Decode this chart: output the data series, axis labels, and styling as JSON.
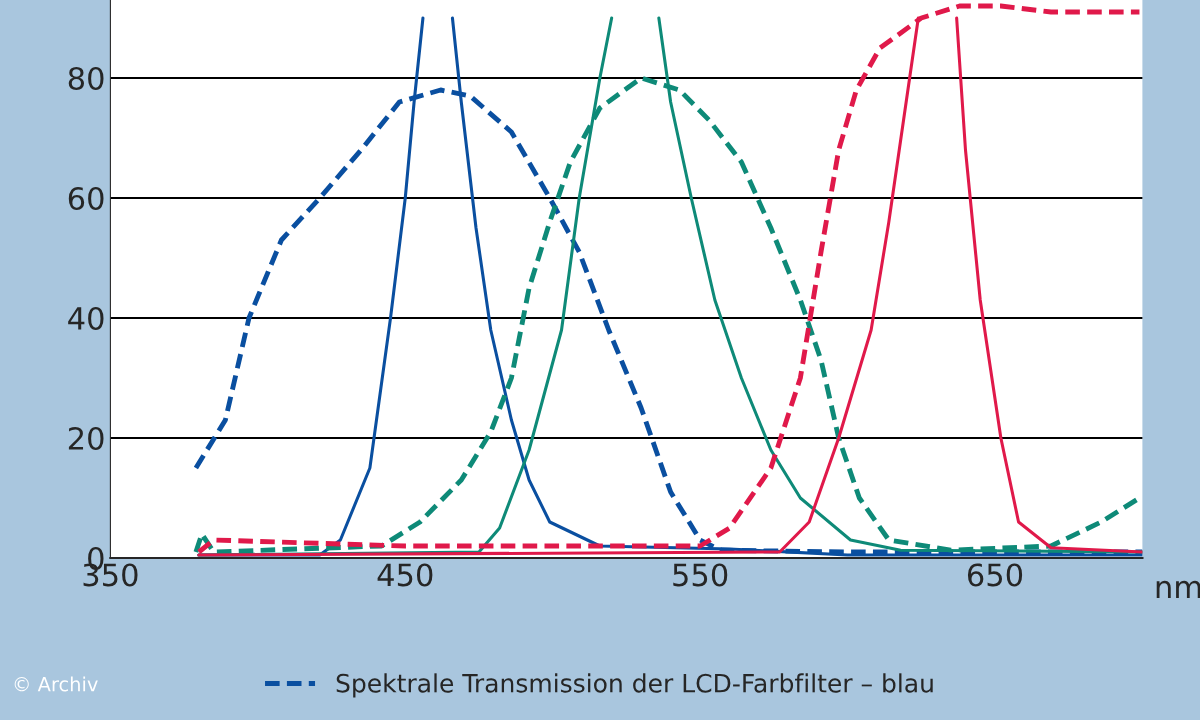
{
  "chart_data": {
    "type": "line",
    "xlabel": "nm",
    "xlim": [
      350,
      700
    ],
    "xticks": [
      350,
      450,
      550,
      650
    ],
    "ylim": [
      0,
      93
    ],
    "yticks": [
      0,
      20,
      40,
      60,
      80
    ],
    "grid": "y",
    "legend": "bottom",
    "annotations": [
      "© Archiv"
    ],
    "series": [
      {
        "name": "Spektrale Transmission der LCD-Farbfilter – blau",
        "color": "#0a4fa0",
        "line_style": "dashed",
        "x": [
          379,
          389,
          397,
          408,
          421,
          435,
          448,
          462,
          472,
          486,
          499,
          509,
          519,
          530,
          540,
          550,
          557,
          600,
          700
        ],
        "values": [
          15,
          23,
          40,
          53,
          60,
          68,
          76,
          78,
          77,
          71,
          60,
          51,
          38,
          25,
          11,
          3,
          1.3,
          1,
          1
        ]
      },
      {
        "color": "#0a4fa0",
        "line_style": "solid",
        "x": [
          380,
          421,
          428,
          438,
          445,
          450,
          453,
          456,
          461,
          466,
          469,
          474,
          479,
          486,
          492,
          499,
          516,
          560,
          600,
          700
        ],
        "values": [
          0.5,
          0.5,
          3,
          15,
          40,
          60,
          76,
          90,
          null,
          90,
          76,
          55,
          38,
          23,
          13,
          6,
          2,
          1.5,
          0.5,
          0.5
        ]
      },
      {
        "color": "#0e8a78",
        "line_style": "dashed",
        "x": [
          379,
          381,
          385,
          442,
          455,
          469,
          479,
          486,
          492,
          499,
          506,
          516,
          530,
          543,
          553,
          564,
          574,
          584,
          591,
          597,
          604,
          614,
          635,
          669,
          686,
          699
        ],
        "values": [
          1,
          4,
          1,
          2,
          6,
          13,
          21,
          30,
          45,
          56,
          66,
          75,
          80,
          78,
          73,
          66,
          55,
          43,
          33,
          20,
          10,
          3,
          1.3,
          2,
          6,
          10
        ]
      },
      {
        "color": "#0e8a78",
        "line_style": "solid",
        "x": [
          380,
          475,
          482,
          492,
          503,
          509,
          516,
          520,
          528,
          536,
          540,
          547,
          555,
          564,
          574,
          584,
          601,
          618,
          700
        ],
        "values": [
          0.5,
          1,
          5,
          18,
          38,
          60,
          80,
          90,
          null,
          90,
          76,
          60,
          43,
          30,
          18,
          10,
          3,
          1.3,
          1
        ]
      },
      {
        "color": "#e0194a",
        "line_style": "dashed",
        "x": [
          380,
          385,
          450,
          550,
          560,
          574,
          584,
          591,
          597,
          603,
          611,
          625,
          638,
          652,
          669,
          699
        ],
        "values": [
          1,
          3,
          2,
          2,
          5,
          15,
          30,
          51,
          68,
          78,
          85,
          90,
          92,
          92,
          91,
          91
        ]
      },
      {
        "color": "#e0194a",
        "line_style": "solid",
        "x": [
          380,
          577,
          587,
          597,
          608,
          614,
          619,
          624,
          630,
          637,
          640,
          645,
          652,
          658,
          669,
          700
        ],
        "values": [
          0.5,
          1,
          6,
          20,
          38,
          56,
          73,
          90,
          null,
          90,
          68,
          43,
          20,
          6,
          1.7,
          1
        ]
      }
    ]
  }
}
